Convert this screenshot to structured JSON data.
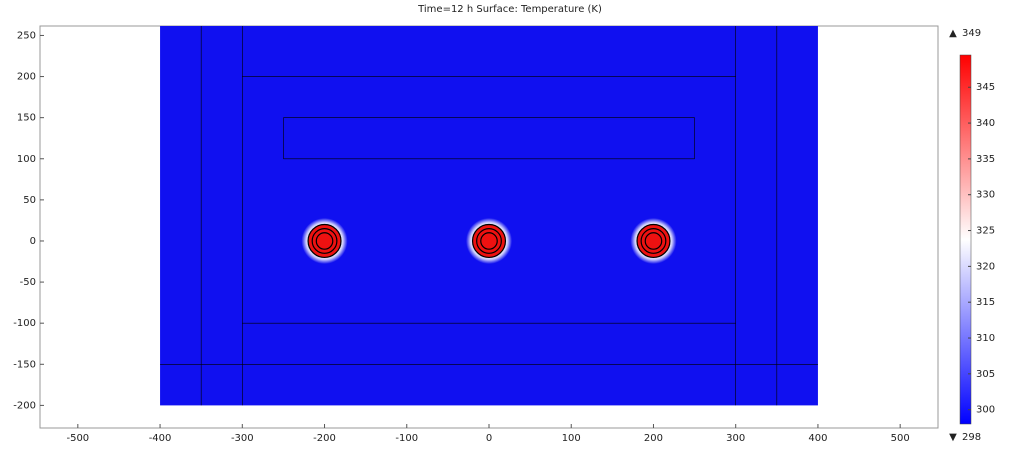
{
  "chart_data": {
    "type": "heatmap",
    "title": "Time=12 h    Surface: Temperature (K)",
    "xlim": [
      -546,
      546
    ],
    "ylim": [
      -227.5,
      261.5
    ],
    "xticks": [
      -500,
      -400,
      -300,
      -200,
      -100,
      0,
      100,
      200,
      300,
      400,
      500
    ],
    "yticks": [
      -200,
      -150,
      -100,
      -50,
      0,
      50,
      100,
      150,
      200,
      250
    ],
    "domain": {
      "x": [
        -400,
        400
      ],
      "y": [
        -200,
        261.5
      ],
      "color": "#1010f0"
    },
    "segments": [
      [
        -350,
        -200,
        -350,
        261.5
      ],
      [
        -300,
        -200,
        -300,
        261.5
      ],
      [
        300,
        -200,
        300,
        261.5
      ],
      [
        350,
        -200,
        350,
        261.5
      ],
      [
        -300,
        200,
        300,
        200
      ],
      [
        -300,
        -100,
        300,
        -100
      ],
      [
        -400,
        -150,
        400,
        -150
      ],
      [
        -250,
        100,
        250,
        100
      ],
      [
        -250,
        150,
        250,
        150
      ],
      [
        -250,
        100,
        -250,
        150
      ],
      [
        250,
        100,
        250,
        150
      ]
    ],
    "sources": {
      "x": [
        -200,
        0,
        200
      ],
      "y": [
        0,
        0,
        0
      ],
      "radii": [
        20,
        15,
        10
      ],
      "glow_radius": 28,
      "color": "#ee1111"
    },
    "colorbar": {
      "range": [
        298,
        349.5
      ],
      "ticks": [
        300,
        305,
        310,
        315,
        320,
        325,
        330,
        335,
        340,
        345
      ],
      "colors": [
        "#0000ff",
        "#ffffff",
        "#ff0000"
      ],
      "max": 349,
      "min": 298
    }
  }
}
